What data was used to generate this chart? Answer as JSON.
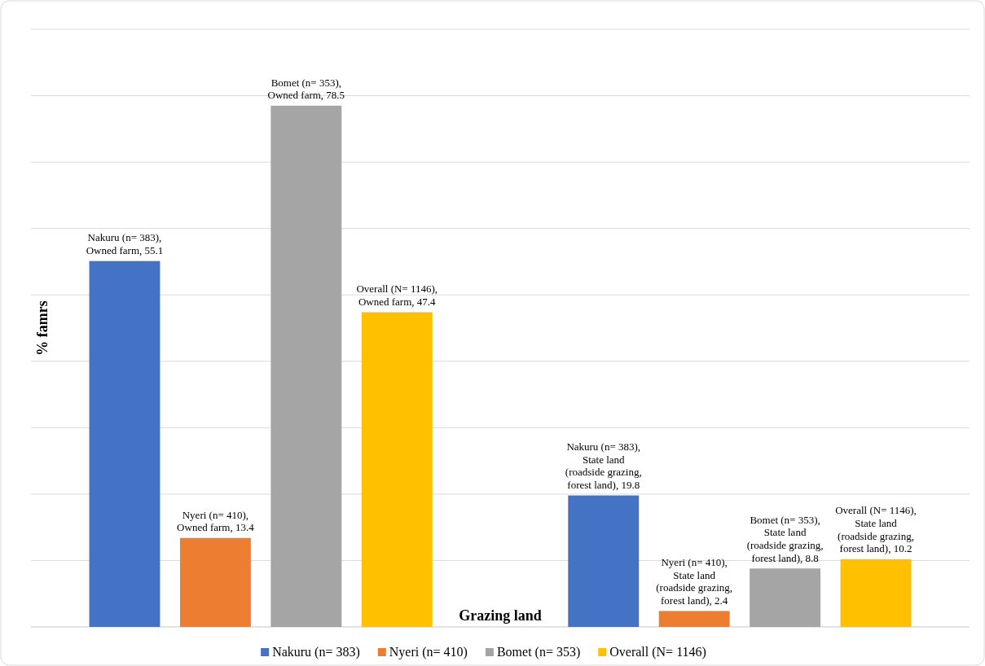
{
  "chart_data": {
    "type": "bar",
    "xlabel": "Grazing land",
    "ylabel": "% famrs",
    "categories": [
      null,
      null
    ],
    "series": [
      {
        "name": "Nakuru (n= 383)",
        "color": "#4472c4",
        "values": [
          55.1,
          19.8
        ],
        "value_labels": [
          "Nakuru (n= 383), Owned farm, 55.1",
          "Nakuru (n= 383), State land (roadside grazing, forest land), 19.8"
        ]
      },
      {
        "name": "Nyeri (n= 410)",
        "color": "#ed7d31",
        "values": [
          13.4,
          2.4
        ],
        "value_labels": [
          "Nyeri (n= 410), Owned farm, 13.4",
          "Nyeri (n= 410), State land (roadside grazing, forest land), 2.4"
        ]
      },
      {
        "name": "Bomet (n= 353)",
        "color": "#a5a5a5",
        "values": [
          78.5,
          8.8
        ],
        "value_labels": [
          "Bomet (n= 353), Owned farm, 78.5",
          "Bomet (n= 353), State land (roadside grazing, forest land), 8.8"
        ]
      },
      {
        "name": "Overall (N= 1146)",
        "color": "#ffc000",
        "values": [
          47.4,
          10.2
        ],
        "value_labels": [
          "Overall (N= 1146), Owned farm, 47.4",
          "Overall (N= 1146), State land (roadside grazing, forest land), 10.2"
        ]
      }
    ],
    "ylim": [
      0,
      90
    ],
    "yticks": [
      {
        "value": 0,
        "label": null
      },
      {
        "value": 10,
        "label": null
      },
      {
        "value": 20,
        "label": null
      },
      {
        "value": 30,
        "label": null
      },
      {
        "value": 40,
        "label": null
      },
      {
        "value": 50,
        "label": null
      },
      {
        "value": 60,
        "label": null
      },
      {
        "value": 70,
        "label": null
      },
      {
        "value": 80,
        "label": null
      },
      {
        "value": 90,
        "label": null
      }
    ],
    "grid": "y",
    "legend": "bottom"
  }
}
